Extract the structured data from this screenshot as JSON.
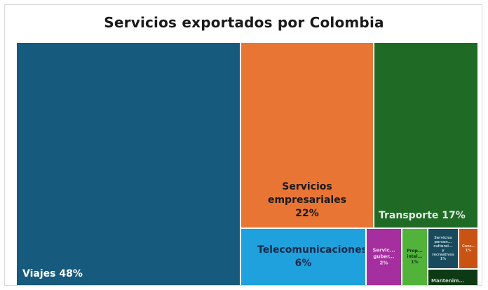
{
  "chart_data": {
    "type": "treemap",
    "title": "Servicios exportados por Colombia",
    "tiles": [
      {
        "label": "Viajes 48%",
        "value": 48,
        "color": "#165a7d",
        "text_color": "#ffffff"
      },
      {
        "label": "Servicios empresariales 22%",
        "value": 22,
        "color": "#e97535",
        "text_color": "#1a1a1a"
      },
      {
        "label": "Transporte 17%",
        "value": 17,
        "color": "#1f6b25",
        "text_color": "#e8e8e8"
      },
      {
        "label": "Telecomunicaciones 6%",
        "value": 6,
        "color": "#1ea1dd",
        "text_color": "#1a2a4a"
      },
      {
        "label": "Servic... guber... 2%",
        "value": 2,
        "color": "#a52f9e",
        "text_color": "#f0d8ee"
      },
      {
        "label": "Prop... intel... 1%",
        "value": 1,
        "color": "#52b33b",
        "text_color": "#10300c"
      },
      {
        "label": "Servicios person... cultural... y recreativos 1%",
        "value": 1,
        "color": "#184a5c",
        "text_color": "#b8d0dc"
      },
      {
        "label": "Cons... 1%",
        "value": 0.5,
        "color": "#c85312",
        "text_color": "#ffd8c0"
      },
      {
        "label": "Mantenim...",
        "value": 0.5,
        "color": "#0d3a14",
        "text_color": "#c8d8c8"
      }
    ]
  }
}
